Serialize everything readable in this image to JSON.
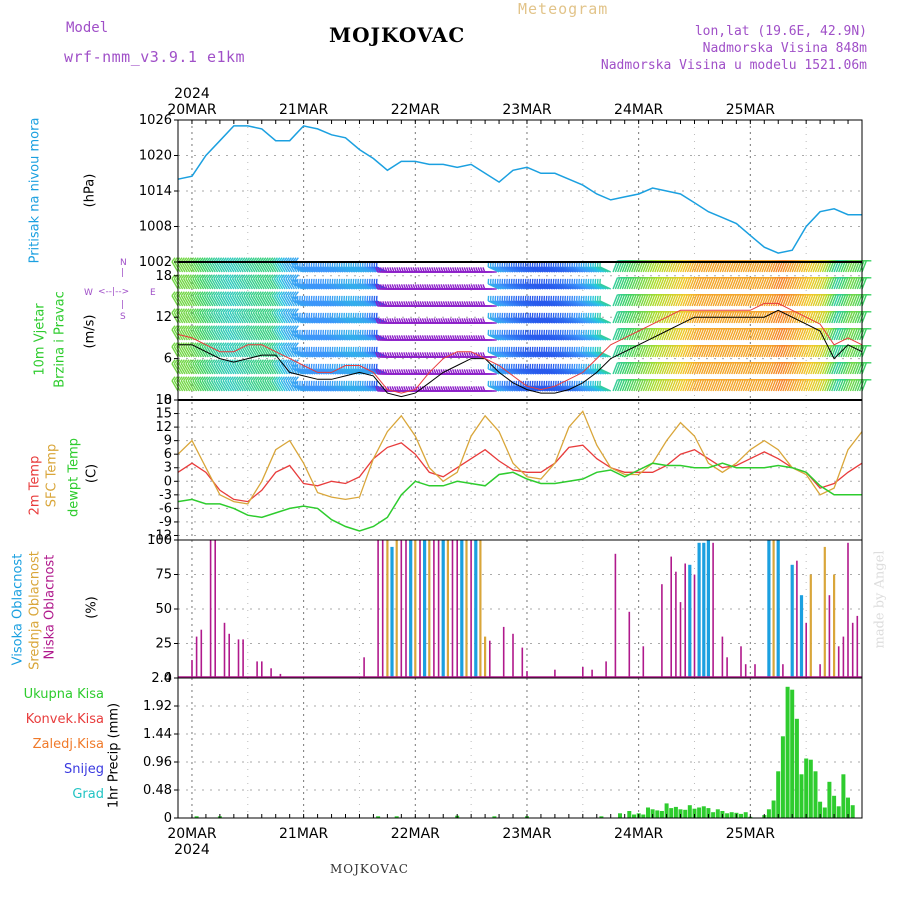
{
  "header": {
    "model_label": "Model",
    "model_name": "wrf-nmm_v3.9.1 e1km",
    "location": "MOJKOVAC",
    "meteogram": "Meteogram",
    "lonlat": "lon,lat (19.6E, 42.9N)",
    "elevation": "Nadmorska Visina 848m",
    "model_elevation": "Nadmorska Visina u modelu 1521.06m",
    "footer_location": "MOJKOVAC",
    "watermark": "made by Angel"
  },
  "colors": {
    "pressure": "#1ba0e0",
    "temp2m": "#e83c3c",
    "sfc": "#d9a63a",
    "dewpt": "#2ecc2e",
    "high_cloud": "#1ba0e0",
    "mid_cloud": "#d9a63a",
    "low_cloud": "#b0198c",
    "precip_total": "#2ecc2e",
    "precip_conv": "#e83c3c",
    "snow": "#3a3ae0",
    "hail": "#22c4c4"
  },
  "time_axis": {
    "year": "2024",
    "days": [
      "20MAR",
      "21MAR",
      "22MAR",
      "23MAR",
      "24MAR",
      "25MAR"
    ],
    "start_hour": -3,
    "end_hour": 144
  },
  "panels": {
    "pressure": {
      "label": "Pritisak na nivou mora",
      "unit": "(hPa)",
      "ticks": [
        "1002",
        "1008",
        "1014",
        "1020",
        "1026"
      ]
    },
    "wind": {
      "label1": "10m Vjetar",
      "label2": "Brzina i Pravac",
      "unit": "(m/s)",
      "ticks": [
        "0",
        "6",
        "12",
        "18"
      ],
      "compass": {
        "n": "N",
        "s": "S",
        "w": "W",
        "e": "E"
      }
    },
    "temp": {
      "label1": "2m Temp",
      "label2": "SFC Temp",
      "label3": "dewpt Temp",
      "unit": "(C)",
      "ticks": [
        "-12",
        "-9",
        "-6",
        "-3",
        "0",
        "3",
        "6",
        "9",
        "12",
        "15",
        "18"
      ]
    },
    "cloud": {
      "label1": "Visoka Oblacnost",
      "label2": "Srednja Oblacnost",
      "label3": "Niska Oblacnost",
      "unit": "(%)",
      "ticks": [
        "0",
        "25",
        "50",
        "75",
        "100"
      ]
    },
    "precip": {
      "legend": [
        "Ukupna Kisa",
        "Konvek.Kisa",
        "Zaledj.Kisa",
        "Snijeg",
        "Grad"
      ],
      "unit": "1hr Precip (mm)",
      "ticks": [
        "0",
        "0.48",
        "0.96",
        "1.44",
        "1.92",
        "2.4"
      ]
    }
  },
  "chart_data": [
    {
      "type": "line",
      "name": "pressure",
      "ylim": [
        1002,
        1026
      ],
      "x_hours": [
        -3,
        0,
        3,
        6,
        9,
        12,
        15,
        18,
        21,
        24,
        27,
        30,
        33,
        36,
        39,
        42,
        45,
        48,
        51,
        54,
        57,
        60,
        63,
        66,
        69,
        72,
        75,
        78,
        81,
        84,
        87,
        90,
        93,
        96,
        99,
        102,
        105,
        108,
        111,
        114,
        117,
        120,
        123,
        126,
        129,
        132,
        135,
        138,
        141,
        144
      ],
      "series": [
        {
          "values": [
            1016,
            1016.5,
            1020,
            1022.5,
            1025,
            1025,
            1024.5,
            1022.5,
            1022.5,
            1025,
            1024.5,
            1023.5,
            1023,
            1021,
            1019.5,
            1017.5,
            1019,
            1019,
            1018.5,
            1018.5,
            1018,
            1018.5,
            1017,
            1015.5,
            1017.5,
            1018,
            1017,
            1017,
            1016,
            1015,
            1013.5,
            1012.5,
            1013,
            1013.5,
            1014.5,
            1014,
            1013.5,
            1012,
            1010.5,
            1009.5,
            1008.5,
            1006.5,
            1004.5,
            1003.5,
            1004,
            1008,
            1010.5,
            1011,
            1010,
            1010
          ]
        }
      ]
    },
    {
      "type": "line",
      "name": "wind_speed",
      "ylim": [
        0,
        20
      ],
      "x_hours": [
        -3,
        0,
        3,
        6,
        9,
        12,
        15,
        18,
        21,
        24,
        27,
        30,
        33,
        36,
        39,
        42,
        45,
        48,
        51,
        54,
        57,
        60,
        63,
        66,
        69,
        72,
        75,
        78,
        81,
        84,
        87,
        90,
        93,
        96,
        99,
        102,
        105,
        108,
        111,
        114,
        117,
        120,
        123,
        126,
        129,
        132,
        135,
        138,
        141,
        144
      ],
      "series": [
        {
          "values": [
            8,
            8,
            7,
            6,
            5.5,
            6,
            6.5,
            6.5,
            4,
            3.5,
            3,
            3,
            3.5,
            4,
            3.5,
            1,
            0.5,
            1,
            2.5,
            4,
            5,
            6,
            6,
            4,
            2.5,
            1.5,
            1,
            1,
            1.5,
            2.5,
            4,
            6,
            7,
            8,
            9,
            10,
            11,
            12,
            12,
            12,
            12,
            12,
            12,
            13,
            12,
            11,
            10,
            6,
            8,
            7
          ]
        },
        {
          "values": [
            9.5,
            9,
            8,
            7,
            7,
            8,
            8,
            7,
            6,
            5,
            4,
            4,
            5,
            5,
            4,
            1.5,
            1,
            1.5,
            4,
            6,
            7,
            7,
            6,
            5,
            3.5,
            2,
            1.5,
            2,
            3,
            4,
            6,
            8,
            9,
            10,
            11,
            12,
            13,
            13,
            13,
            13,
            13,
            13,
            14,
            14,
            13,
            12,
            11,
            8,
            9,
            8
          ]
        }
      ]
    },
    {
      "type": "line",
      "name": "temperature",
      "ylim": [
        -13,
        18
      ],
      "x_hours": [
        -3,
        0,
        3,
        6,
        9,
        12,
        15,
        18,
        21,
        24,
        27,
        30,
        33,
        36,
        39,
        42,
        45,
        48,
        51,
        54,
        57,
        60,
        63,
        66,
        69,
        72,
        75,
        78,
        81,
        84,
        87,
        90,
        93,
        96,
        99,
        102,
        105,
        108,
        111,
        114,
        117,
        120,
        123,
        126,
        129,
        132,
        135,
        138,
        141,
        144
      ],
      "series": [
        {
          "name": "2m Temp",
          "values": [
            2,
            4,
            2,
            -2,
            -4,
            -4.5,
            -2,
            2,
            3.5,
            -0.5,
            -1,
            0,
            -0.5,
            1,
            5,
            7.5,
            8.5,
            6,
            2,
            1,
            3,
            5,
            7,
            4.5,
            2.5,
            2,
            2,
            4,
            7.5,
            8,
            5,
            3,
            2,
            2,
            2,
            3.5,
            6,
            7,
            5,
            3,
            3.5,
            5,
            6.5,
            5,
            3,
            2,
            -1.5,
            -0.5,
            2,
            4
          ]
        },
        {
          "name": "SFC Temp",
          "values": [
            6,
            9,
            3,
            -3,
            -4.5,
            -5,
            0,
            7,
            9,
            4,
            -2.5,
            -3.5,
            -4,
            -3.5,
            5,
            11,
            14.5,
            10,
            3,
            0,
            2,
            10,
            14.5,
            11,
            4,
            1,
            0.5,
            4,
            12,
            15.5,
            8,
            3,
            1.5,
            1.5,
            4,
            9,
            13,
            10,
            4,
            2,
            4,
            7,
            9,
            7,
            3,
            1.5,
            -3,
            -1.5,
            7,
            11
          ]
        },
        {
          "name": "dewpt Temp",
          "values": [
            -4.5,
            -4,
            -5,
            -5,
            -6,
            -7.5,
            -8,
            -7,
            -6,
            -5.5,
            -6,
            -8.5,
            -10,
            -11,
            -10,
            -8,
            -3,
            0,
            -1,
            -1,
            0,
            -0.5,
            -1,
            1.5,
            2,
            0.5,
            -0.5,
            -0.5,
            0,
            0.5,
            2,
            2.5,
            1,
            2.5,
            4,
            3.5,
            3.5,
            3,
            3,
            4,
            3,
            3,
            3,
            3.5,
            3,
            2,
            -1,
            -3,
            -3,
            -3
          ]
        }
      ]
    },
    {
      "type": "bar",
      "name": "cloud_cover",
      "ylim": [
        0,
        100
      ],
      "series": [
        {
          "name": "Niska Oblacnost",
          "bars": [
            [
              0,
              13
            ],
            [
              1,
              30
            ],
            [
              2,
              35
            ],
            [
              4,
              100
            ],
            [
              5,
              100
            ],
            [
              7,
              40
            ],
            [
              8,
              32
            ],
            [
              10,
              28
            ],
            [
              11,
              28
            ],
            [
              14,
              12
            ],
            [
              15,
              12
            ],
            [
              17,
              7
            ],
            [
              19,
              3
            ],
            [
              37,
              15
            ],
            [
              40,
              100
            ],
            [
              41,
              100
            ],
            [
              45,
              100
            ],
            [
              46,
              100
            ],
            [
              49,
              100
            ],
            [
              52,
              100
            ],
            [
              53,
              100
            ],
            [
              56,
              100
            ],
            [
              57,
              100
            ],
            [
              60,
              100
            ],
            [
              64,
              27
            ],
            [
              67,
              37
            ],
            [
              69,
              32
            ],
            [
              71,
              22
            ],
            [
              72,
              5
            ],
            [
              78,
              6
            ],
            [
              84,
              8
            ],
            [
              86,
              6
            ],
            [
              89,
              12
            ],
            [
              91,
              90
            ],
            [
              94,
              48
            ],
            [
              97,
              23
            ],
            [
              101,
              68
            ],
            [
              103,
              88
            ],
            [
              104,
              77
            ],
            [
              105,
              55
            ],
            [
              106,
              83
            ],
            [
              108,
              75
            ],
            [
              112,
              98
            ],
            [
              114,
              30
            ],
            [
              115,
              15
            ],
            [
              118,
              23
            ],
            [
              119,
              10
            ],
            [
              121,
              10
            ],
            [
              127,
              10
            ],
            [
              130,
              85
            ],
            [
              132,
              40
            ],
            [
              135,
              10
            ],
            [
              137,
              60
            ],
            [
              139,
              23
            ],
            [
              140,
              30
            ],
            [
              141,
              98
            ],
            [
              142,
              40
            ],
            [
              143,
              45
            ]
          ]
        },
        {
          "name": "Srednja Oblacnost",
          "bars": [
            [
              42,
              100
            ],
            [
              44,
              100
            ],
            [
              48,
              100
            ],
            [
              51,
              100
            ],
            [
              55,
              100
            ],
            [
              59,
              100
            ],
            [
              62,
              100
            ],
            [
              63,
              30
            ],
            [
              125,
              100
            ],
            [
              133,
              75
            ],
            [
              136,
              95
            ],
            [
              138,
              75
            ]
          ]
        },
        {
          "name": "Visoka Oblacnost",
          "bars": [
            [
              43,
              95
            ],
            [
              47,
              100
            ],
            [
              50,
              100
            ],
            [
              54,
              100
            ],
            [
              58,
              100
            ],
            [
              61,
              100
            ],
            [
              107,
              82
            ],
            [
              109,
              98
            ],
            [
              110,
              98
            ],
            [
              111,
              100
            ],
            [
              124,
              100
            ],
            [
              126,
              100
            ],
            [
              129,
              82
            ],
            [
              131,
              60
            ]
          ]
        }
      ]
    },
    {
      "type": "bar",
      "name": "precipitation",
      "ylim": [
        0,
        2.4
      ],
      "series": [
        {
          "name": "Ukupna Kisa",
          "bars": [
            [
              1,
              0.03
            ],
            [
              6,
              0.03
            ],
            [
              40,
              0.03
            ],
            [
              44,
              0.03
            ],
            [
              57,
              0.04
            ],
            [
              65,
              0.03
            ],
            [
              72,
              0.03
            ],
            [
              88,
              0.03
            ],
            [
              92,
              0.08
            ],
            [
              94,
              0.12
            ],
            [
              95,
              0.06
            ],
            [
              96,
              0.08
            ],
            [
              97,
              0.06
            ],
            [
              98,
              0.18
            ],
            [
              99,
              0.15
            ],
            [
              100,
              0.13
            ],
            [
              101,
              0.12
            ],
            [
              102,
              0.25
            ],
            [
              103,
              0.17
            ],
            [
              104,
              0.19
            ],
            [
              105,
              0.15
            ],
            [
              106,
              0.14
            ],
            [
              107,
              0.22
            ],
            [
              108,
              0.16
            ],
            [
              109,
              0.18
            ],
            [
              110,
              0.2
            ],
            [
              111,
              0.17
            ],
            [
              112,
              0.1
            ],
            [
              113,
              0.15
            ],
            [
              114,
              0.12
            ],
            [
              115,
              0.08
            ],
            [
              116,
              0.1
            ],
            [
              117,
              0.09
            ],
            [
              118,
              0.07
            ],
            [
              119,
              0.1
            ],
            [
              120,
              0.02
            ],
            [
              123,
              0.05
            ],
            [
              124,
              0.15
            ],
            [
              125,
              0.3
            ],
            [
              126,
              0.8
            ],
            [
              127,
              1.4
            ],
            [
              128,
              2.25
            ],
            [
              129,
              2.2
            ],
            [
              130,
              1.7
            ],
            [
              131,
              0.75
            ],
            [
              132,
              1.02
            ],
            [
              133,
              1.0
            ],
            [
              134,
              0.8
            ],
            [
              135,
              0.28
            ],
            [
              136,
              0.18
            ],
            [
              137,
              0.62
            ],
            [
              138,
              0.38
            ],
            [
              139,
              0.2
            ],
            [
              140,
              0.75
            ],
            [
              141,
              0.35
            ],
            [
              142,
              0.22
            ]
          ]
        }
      ]
    }
  ]
}
